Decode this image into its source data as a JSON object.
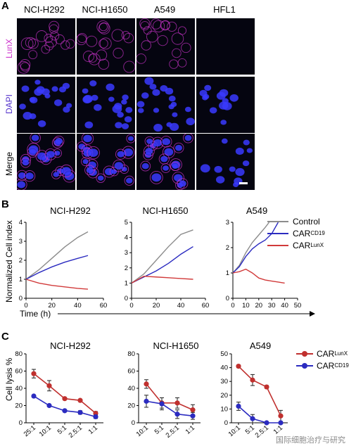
{
  "panel_a": {
    "letter": "A",
    "columns": [
      "NCI-H292",
      "NCI-H1650",
      "A549",
      "HFL1"
    ],
    "rows": [
      "LunX",
      "DAPI",
      "Merge"
    ],
    "colors": {
      "LunX": "#cc33cc",
      "DAPI": "#3a3aff",
      "background": "#050510"
    }
  },
  "panel_b": {
    "letter": "B",
    "ylabel": "Normalized Cell index",
    "xlabel": "Time (h)",
    "legend": [
      {
        "base": "Control",
        "sup": "",
        "color": "#8c8c8c"
      },
      {
        "base": "CAR",
        "sup": "CD19",
        "color": "#2b2bc0"
      },
      {
        "base": "CAR",
        "sup": "LunX",
        "color": "#d13a3a"
      }
    ]
  },
  "panel_c": {
    "letter": "C",
    "ylabel": "Cell lysis %",
    "legend": [
      {
        "base": "CAR",
        "sup": "LunX",
        "color": "#c0302e"
      },
      {
        "base": "CAR",
        "sup": "CD19",
        "color": "#2b2bc0"
      }
    ]
  },
  "watermark": "国际细胞治疗与研究",
  "chart_data": [
    {
      "type": "line",
      "title": "NCI-H292",
      "xlim": [
        0,
        60
      ],
      "ylim": [
        0,
        4
      ],
      "xticks": [
        "0",
        "20",
        "40",
        "60"
      ],
      "yticks": [
        "0",
        "1",
        "2",
        "3",
        "4"
      ],
      "series": [
        {
          "name": "Control",
          "x": [
            0,
            10,
            20,
            30,
            40,
            48
          ],
          "y": [
            1.0,
            1.5,
            2.1,
            2.7,
            3.2,
            3.5
          ]
        },
        {
          "name": "CARCD19",
          "x": [
            0,
            10,
            20,
            30,
            40,
            48
          ],
          "y": [
            1.0,
            1.35,
            1.65,
            1.9,
            2.1,
            2.25
          ]
        },
        {
          "name": "CARLunX",
          "x": [
            0,
            10,
            20,
            30,
            40,
            48
          ],
          "y": [
            1.0,
            0.8,
            0.68,
            0.6,
            0.52,
            0.48
          ]
        }
      ]
    },
    {
      "type": "line",
      "title": "NCI-H1650",
      "xlim": [
        0,
        60
      ],
      "ylim": [
        0,
        5
      ],
      "xticks": [
        "0",
        "20",
        "40",
        "60"
      ],
      "yticks": [
        "0",
        "1",
        "2",
        "3",
        "4",
        "5"
      ],
      "series": [
        {
          "name": "Control",
          "x": [
            0,
            10,
            20,
            30,
            40,
            50
          ],
          "y": [
            1.0,
            1.6,
            2.5,
            3.4,
            4.2,
            4.5
          ]
        },
        {
          "name": "CARCD19",
          "x": [
            0,
            10,
            20,
            30,
            40,
            50
          ],
          "y": [
            1.0,
            1.4,
            1.8,
            2.3,
            2.9,
            3.4
          ]
        },
        {
          "name": "CARLunX",
          "x": [
            0,
            10,
            20,
            30,
            40,
            50
          ],
          "y": [
            1.0,
            1.45,
            1.4,
            1.35,
            1.3,
            1.25
          ]
        }
      ]
    },
    {
      "type": "line",
      "title": "A549",
      "xlim": [
        0,
        50
      ],
      "ylim": [
        0,
        3
      ],
      "xticks": [
        "0",
        "10",
        "20",
        "30",
        "40",
        "50"
      ],
      "yticks": [
        "0",
        "1",
        "2",
        "3"
      ],
      "series": [
        {
          "name": "Control",
          "x": [
            0,
            5,
            10,
            15,
            20,
            25,
            28
          ],
          "y": [
            1.0,
            1.3,
            1.8,
            2.2,
            2.5,
            2.8,
            3.0
          ]
        },
        {
          "name": "CARCD19",
          "x": [
            0,
            5,
            10,
            15,
            20,
            25,
            30,
            35
          ],
          "y": [
            1.0,
            1.25,
            1.65,
            1.95,
            2.15,
            2.3,
            2.55,
            3.0
          ]
        },
        {
          "name": "CARLunX",
          "x": [
            0,
            5,
            10,
            15,
            20,
            25,
            30,
            35,
            40
          ],
          "y": [
            1.0,
            1.05,
            1.15,
            1.0,
            0.8,
            0.72,
            0.68,
            0.64,
            0.6
          ]
        }
      ]
    },
    {
      "type": "line",
      "title": "NCI-H292",
      "ylim": [
        0,
        80
      ],
      "categories": [
        "25:1",
        "10:1",
        "5:1",
        "2.5:1",
        "1:1"
      ],
      "yticks": [
        "0",
        "20",
        "40",
        "60",
        "80"
      ],
      "series": [
        {
          "name": "CARLunX",
          "values": [
            57,
            43,
            28,
            26,
            11
          ],
          "errors": [
            5,
            6,
            1,
            1,
            2
          ]
        },
        {
          "name": "CARCD19",
          "values": [
            31,
            20,
            14,
            12,
            7
          ],
          "errors": [
            1,
            1,
            1,
            2,
            2
          ]
        }
      ]
    },
    {
      "type": "line",
      "title": "NCI-H1650",
      "ylim": [
        0,
        80
      ],
      "categories": [
        "10:1",
        "5:1",
        "2.5:1",
        "1:1"
      ],
      "yticks": [
        "0",
        "20",
        "40",
        "60",
        "80"
      ],
      "series": [
        {
          "name": "CARLunX",
          "values": [
            45,
            23,
            23,
            15
          ],
          "errors": [
            5,
            6,
            6,
            6
          ]
        },
        {
          "name": "CARCD19",
          "values": [
            25,
            22,
            10,
            8
          ],
          "errors": [
            7,
            7,
            5,
            4
          ]
        }
      ]
    },
    {
      "type": "line",
      "title": "A549",
      "ylim": [
        0,
        50
      ],
      "categories": [
        "10:1",
        "5:1",
        "2.5:1",
        "1:1"
      ],
      "yticks": [
        "0",
        "10",
        "20",
        "30",
        "40",
        "50"
      ],
      "series": [
        {
          "name": "CARLunX",
          "values": [
            41,
            31,
            26,
            5
          ],
          "errors": [
            1,
            4,
            1,
            4
          ]
        },
        {
          "name": "CARCD19",
          "values": [
            12,
            3,
            0,
            0
          ],
          "errors": [
            3,
            3,
            0,
            0
          ]
        }
      ]
    }
  ]
}
